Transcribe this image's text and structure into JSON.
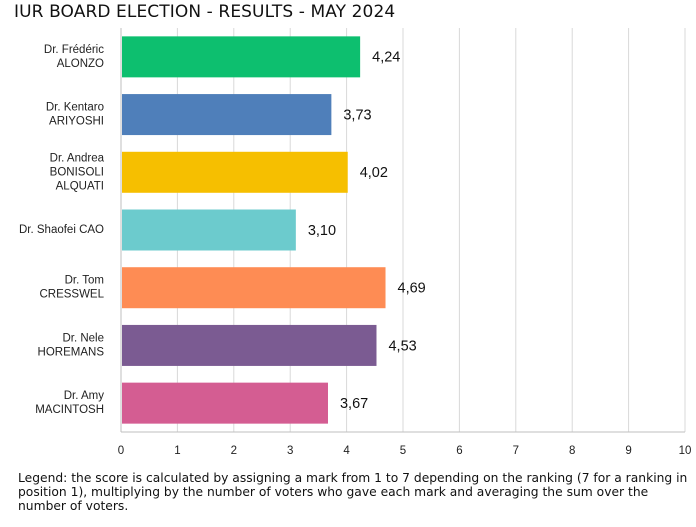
{
  "chart_data": {
    "type": "bar",
    "orientation": "horizontal",
    "title": "IUR BOARD ELECTION - RESULTS - MAY 2024",
    "categories": [
      [
        "Dr. Frédéric",
        "ALONZO"
      ],
      [
        "Dr. Kentaro",
        "ARIYOSHI"
      ],
      [
        "Dr. Andrea",
        "BONISOLI",
        "ALQUATI"
      ],
      [
        "Dr. Shaofei CAO"
      ],
      [
        "Dr. Tom",
        "CRESSWEL"
      ],
      [
        "Dr. Nele",
        "HOREMANS"
      ],
      [
        "Dr. Amy",
        "MACINTOSH"
      ]
    ],
    "values": [
      4.24,
      3.73,
      4.02,
      3.1,
      4.69,
      4.53,
      3.67
    ],
    "value_labels": [
      "4,24",
      "3,73",
      "4,02",
      "3,10",
      "4,69",
      "4,53",
      "3,67"
    ],
    "colors": [
      "#0dbf6f",
      "#4f7fba",
      "#f6bf00",
      "#6ccbcd",
      "#fe8c54",
      "#7b5b92",
      "#d45d92"
    ],
    "xlim": [
      0,
      10
    ],
    "xticks": [
      0,
      1,
      2,
      3,
      4,
      5,
      6,
      7,
      8,
      9,
      10
    ],
    "grid": true,
    "xlabel": "",
    "ylabel": ""
  },
  "legend_text": "Legend: the score is calculated by assigning a mark from 1 to 7 depending on the ranking (7 for a ranking in position 1), multiplying by the number of voters who gave each mark and averaging the sum over the number of voters."
}
